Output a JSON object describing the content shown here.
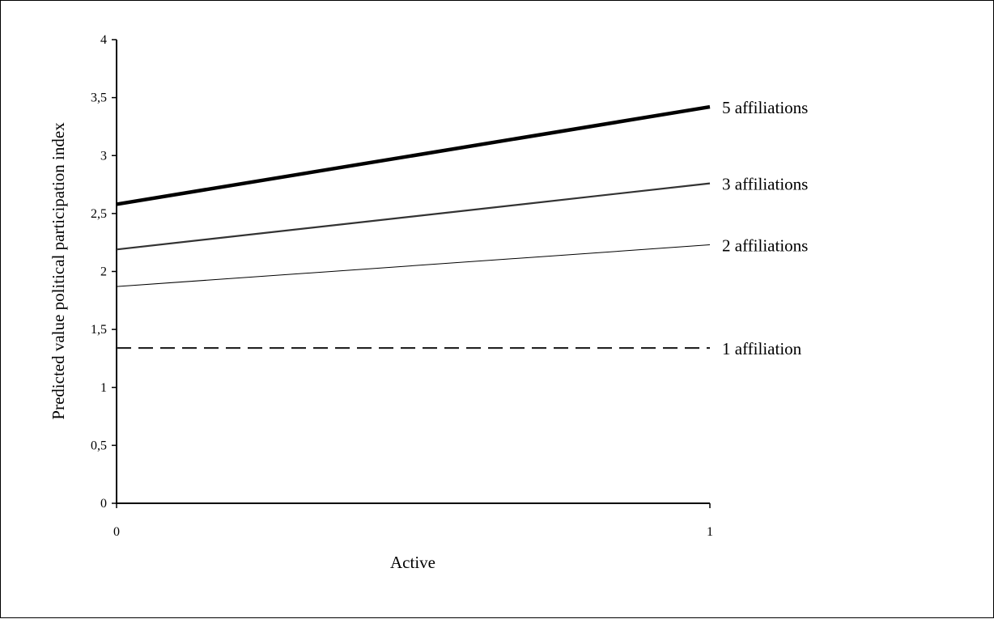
{
  "chart_data": {
    "type": "line",
    "title": "",
    "xlabel": "Active",
    "ylabel": "Predicted value political participation index",
    "x": [
      0,
      1
    ],
    "x_ticks": [
      "0",
      "1"
    ],
    "y_ticks": [
      "0",
      "0,5",
      "1",
      "1,5",
      "2",
      "2,5",
      "3",
      "3,5",
      "4"
    ],
    "xlim": [
      0,
      1
    ],
    "ylim": [
      0,
      4
    ],
    "grid": false,
    "legend": "labels at line ends (right)",
    "series": [
      {
        "name": "5 affiliations",
        "values": [
          2.58,
          3.42
        ],
        "color": "#000000",
        "style": "solid",
        "weight": "heavy"
      },
      {
        "name": "3 affiliations",
        "values": [
          2.19,
          2.76
        ],
        "color": "#333333",
        "style": "solid",
        "weight": "medium"
      },
      {
        "name": "2 affiliations",
        "values": [
          1.87,
          2.23
        ],
        "color": "#000000",
        "style": "solid",
        "weight": "thin"
      },
      {
        "name": "1 affiliation",
        "values": [
          1.34,
          1.34
        ],
        "color": "#222222",
        "style": "dashed",
        "weight": "medium"
      }
    ]
  }
}
